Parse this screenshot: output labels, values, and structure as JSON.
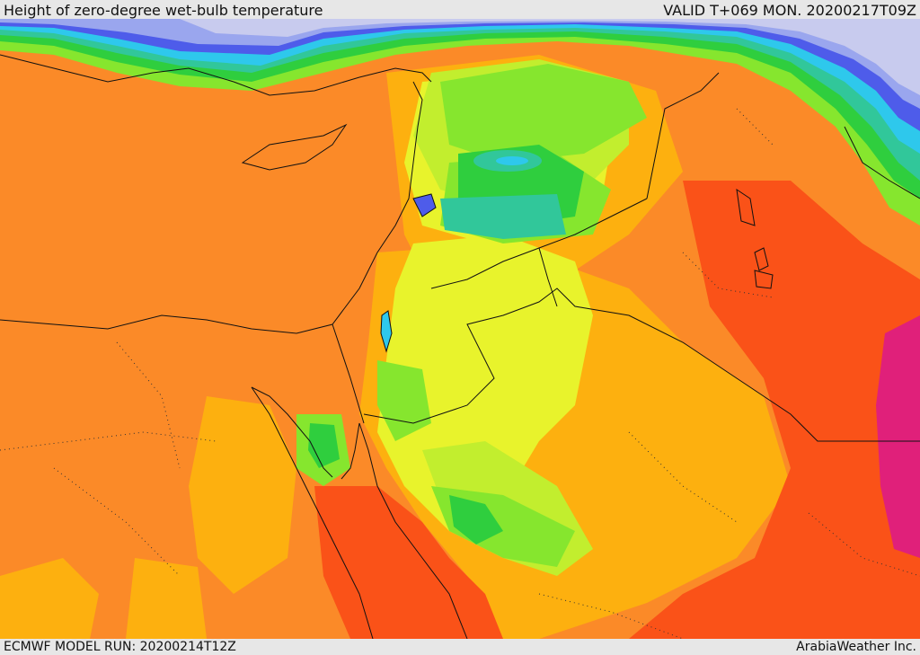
{
  "header": {
    "title": "Height of zero-degree wet-bulb temperature",
    "valid": "VALID T+069 MON. 20200217T09Z"
  },
  "footer": {
    "model_run": "ECMWF MODEL RUN: 20200214T12Z",
    "credit": "ArabiaWeather Inc."
  },
  "palette": {
    "cold_lavender": "#c8cbee",
    "periwinkle": "#9aa6ee",
    "blue": "#4e5cea",
    "cyan": "#2ec8ec",
    "teal": "#31c79a",
    "green": "#2fce3e",
    "light_green": "#86e62e",
    "yellow_green": "#c2ee2e",
    "yellow": "#e8f32c",
    "amber": "#fdb00f",
    "orange": "#fb8a28",
    "red_orange": "#fa5218",
    "magenta": "#e0207a"
  }
}
